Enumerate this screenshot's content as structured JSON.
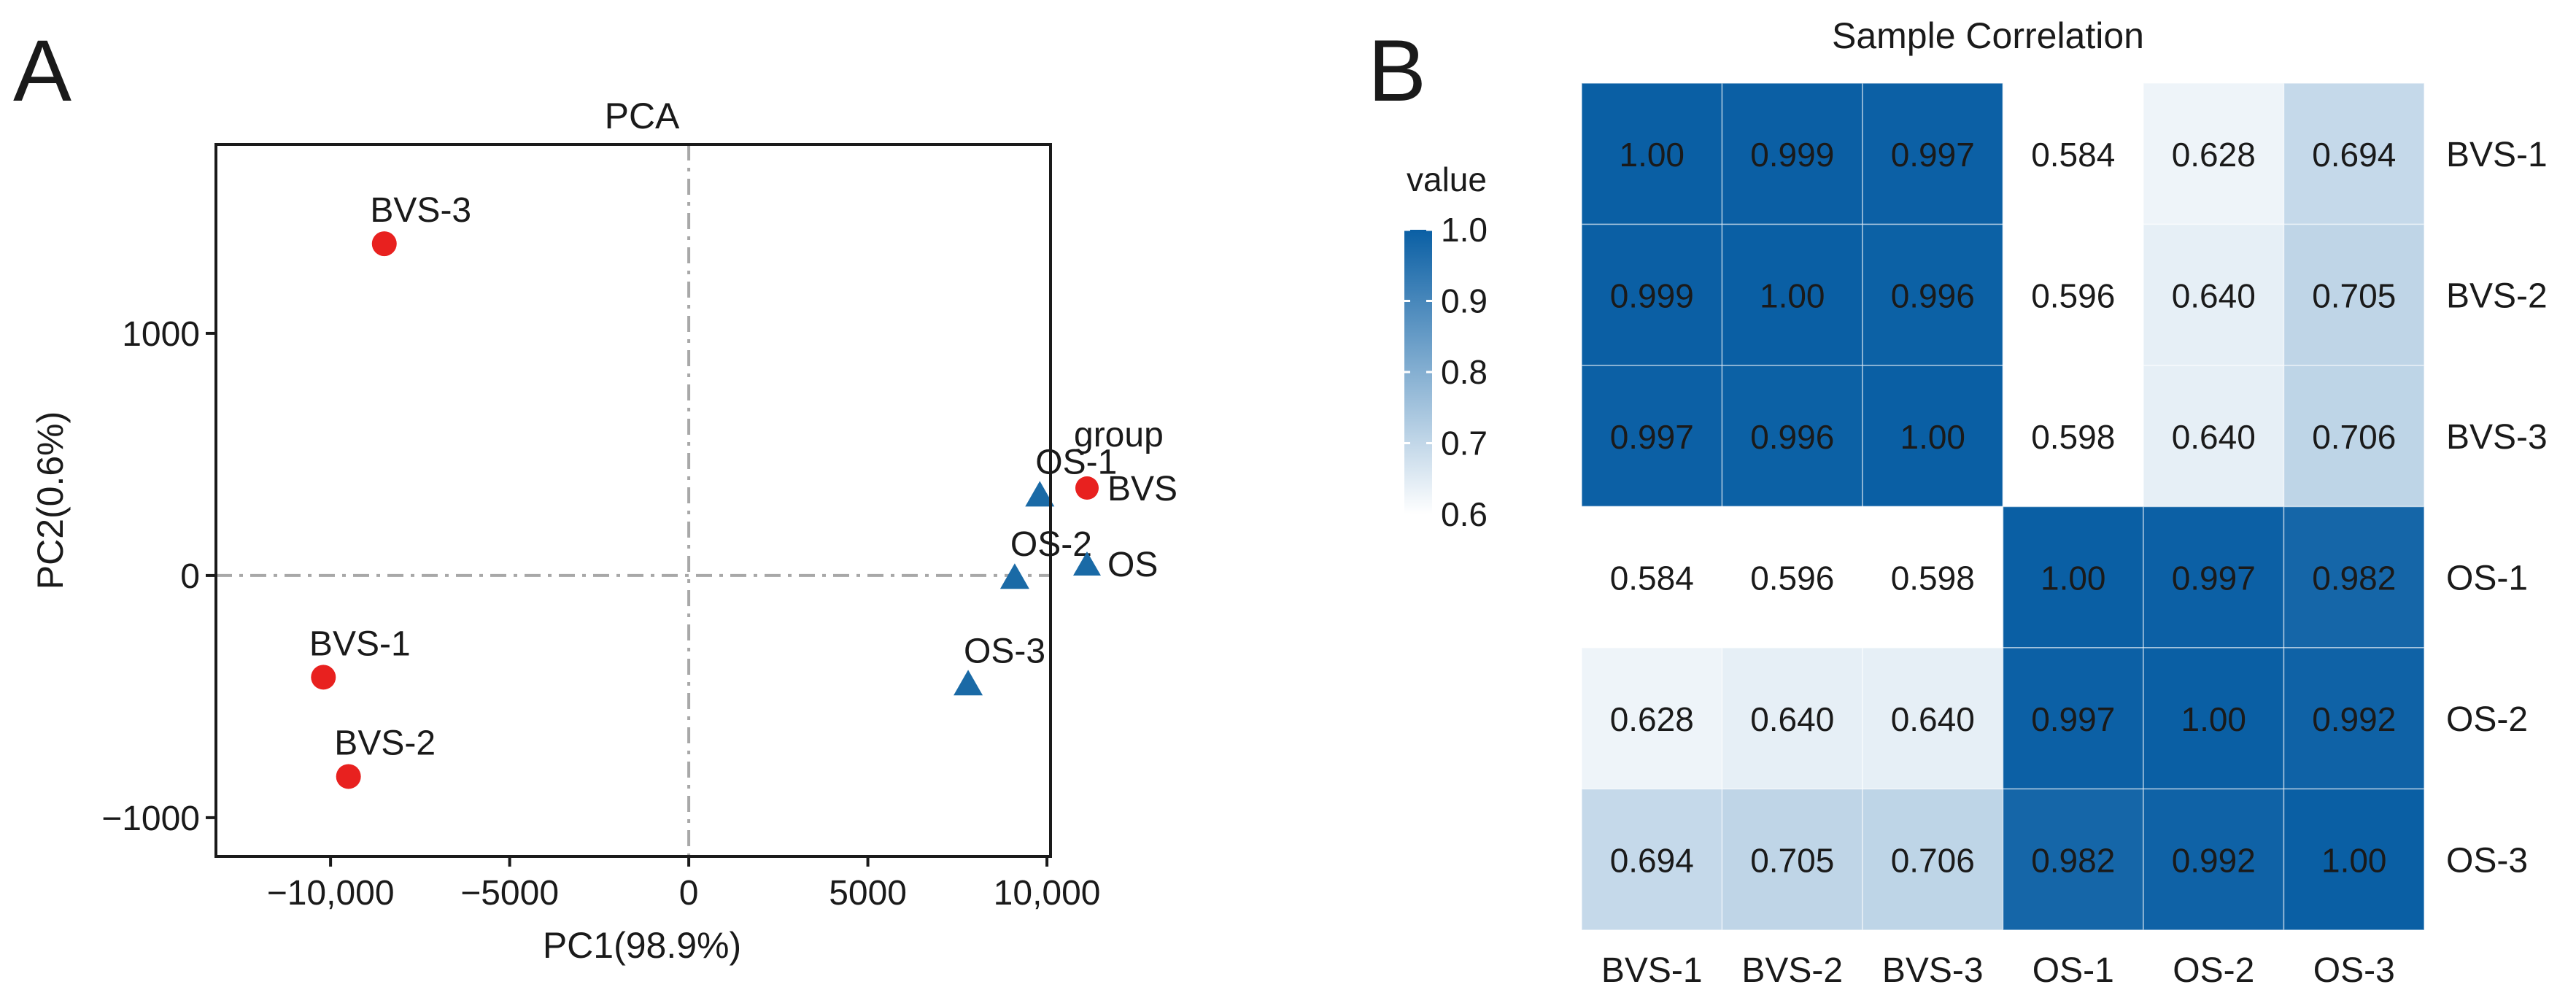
{
  "panels": {
    "a_letter": "A",
    "b_letter": "B"
  },
  "chart_data": [
    {
      "type": "scatter",
      "title": "PCA",
      "xlabel": "PC1(98.9%)",
      "ylabel": "PC2(0.6%)",
      "xlim": [
        -13200,
        10100
      ],
      "ylim": [
        -1160,
        1780
      ],
      "xticks": [
        -10000,
        -5000,
        0,
        5000,
        10000
      ],
      "xtick_labels": [
        "−10,000",
        "−5000",
        "0",
        "5000",
        "10,000"
      ],
      "yticks": [
        -1000,
        0,
        1000
      ],
      "ytick_labels": [
        "−1000",
        "0",
        "1000"
      ],
      "legend_title": "group",
      "legend": [
        {
          "name": "BVS",
          "color": "#e8211f",
          "shape": "circle"
        },
        {
          "name": "OS",
          "color": "#1a6aa6",
          "shape": "triangle"
        }
      ],
      "points": [
        {
          "label": "BVS-1",
          "group": "BVS",
          "x": -10200,
          "y": -420
        },
        {
          "label": "BVS-2",
          "group": "BVS",
          "x": -9500,
          "y": -830
        },
        {
          "label": "BVS-3",
          "group": "BVS",
          "x": -8500,
          "y": 1370
        },
        {
          "label": "OS-1",
          "group": "OS",
          "x": 9800,
          "y": 330
        },
        {
          "label": "OS-2",
          "group": "OS",
          "x": 9100,
          "y": -10
        },
        {
          "label": "OS-3",
          "group": "OS",
          "x": 7800,
          "y": -450
        }
      ]
    },
    {
      "type": "heatmap",
      "title": "Sample Correlation",
      "columns": [
        "BVS-1",
        "BVS-2",
        "BVS-3",
        "OS-1",
        "OS-2",
        "OS-3"
      ],
      "rows": [
        "BVS-1",
        "BVS-2",
        "BVS-3",
        "OS-1",
        "OS-2",
        "OS-3"
      ],
      "values": [
        [
          1.0,
          0.999,
          0.997,
          0.584,
          0.628,
          0.694
        ],
        [
          0.999,
          1.0,
          0.996,
          0.596,
          0.64,
          0.705
        ],
        [
          0.997,
          0.996,
          1.0,
          0.598,
          0.64,
          0.706
        ],
        [
          0.584,
          0.596,
          0.598,
          1.0,
          0.997,
          0.982
        ],
        [
          0.628,
          0.64,
          0.64,
          0.997,
          1.0,
          0.992
        ],
        [
          0.694,
          0.705,
          0.706,
          0.982,
          0.992,
          1.0
        ]
      ],
      "value_labels": [
        [
          "1.00",
          "0.999",
          "0.997",
          "0.584",
          "0.628",
          "0.694"
        ],
        [
          "0.999",
          "1.00",
          "0.996",
          "0.596",
          "0.640",
          "0.705"
        ],
        [
          "0.997",
          "0.996",
          "1.00",
          "0.598",
          "0.640",
          "0.706"
        ],
        [
          "0.584",
          "0.596",
          "0.598",
          "1.00",
          "0.997",
          "0.982"
        ],
        [
          "0.628",
          "0.640",
          "0.640",
          "0.997",
          "1.00",
          "0.992"
        ],
        [
          "0.694",
          "0.705",
          "0.706",
          "0.982",
          "0.992",
          "1.00"
        ]
      ],
      "colorbar": {
        "title": "value",
        "min": 0.6,
        "max": 1.0,
        "ticks": [
          "1.0",
          "0.9",
          "0.8",
          "0.7",
          "0.6"
        ],
        "low_color": "#ffffff",
        "high_color": "#0a5fa4"
      }
    }
  ]
}
